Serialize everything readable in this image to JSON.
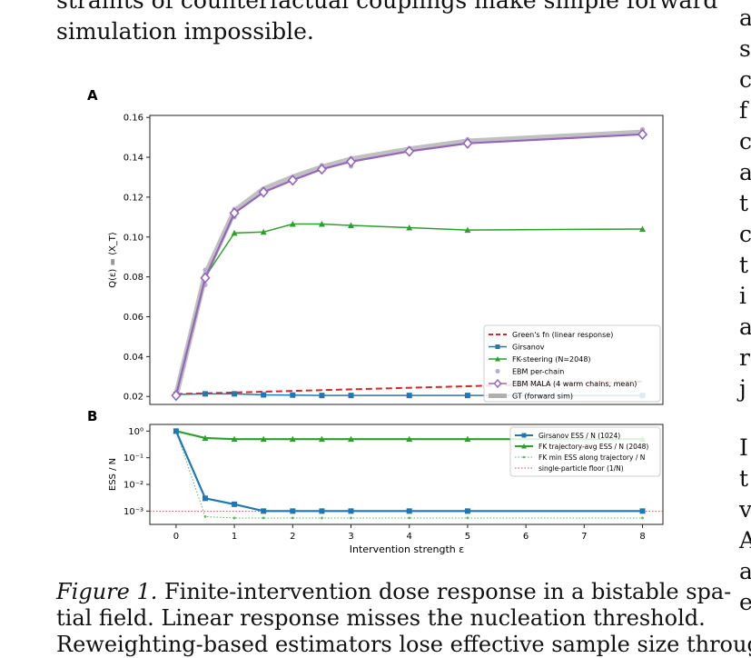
{
  "body_text": {
    "line_top_partial": "straints of counterfactual couplings make simple forward",
    "line_2": "simulation impossible."
  },
  "right_column_letters": [
    "a",
    "s",
    "c",
    "f",
    "c",
    "a",
    "t",
    "c",
    "t",
    "i",
    "a",
    "r",
    "j",
    "I",
    "t",
    "v",
    "A",
    "a",
    "e"
  ],
  "figure": {
    "panel_a_label": "A",
    "panel_b_label": "B",
    "caption_label": "Figure 1.",
    "caption_line1": "Finite-intervention dose response in a bistable spa-",
    "caption_line2": "tial field.  Linear response misses the nucleation threshold.",
    "caption_line3_partial": "Reweighting-based estimators lose effective sample size through"
  },
  "chart_data": [
    {
      "type": "line",
      "panel": "A",
      "ylabel": "Q(ε) = ⟨X_T⟩",
      "xlim": [
        -0.45,
        8.35
      ],
      "ylim": [
        0.016,
        0.161
      ],
      "yticks": [
        0.02,
        0.04,
        0.06,
        0.08,
        0.1,
        0.12,
        0.14,
        0.16
      ],
      "ytick_labels": [
        "0.02",
        "0.04",
        "0.06",
        "0.08",
        "0.10",
        "0.12",
        "0.14",
        "0.16"
      ],
      "legend_position": "bottom-right",
      "series": [
        {
          "name": "Green's fn (linear response)",
          "style": "dashed",
          "color": "#d62728",
          "x": [
            0,
            8
          ],
          "y": [
            0.0212,
            0.0275
          ]
        },
        {
          "name": "Girsanov",
          "style": "line-square",
          "color": "#1f77b4",
          "x": [
            0,
            0.5,
            1,
            1.5,
            2,
            2.5,
            3,
            4,
            5,
            8
          ],
          "y": [
            0.021,
            0.0213,
            0.0213,
            0.0208,
            0.0207,
            0.0205,
            0.0205,
            0.0205,
            0.0205,
            0.0205
          ]
        },
        {
          "name": "FK-steering (N=2048)",
          "style": "line-triangle",
          "color": "#2ca02c",
          "x": [
            0,
            0.5,
            1,
            1.5,
            2,
            2.5,
            3,
            4,
            5,
            8
          ],
          "y": [
            0.021,
            0.08,
            0.102,
            0.1025,
            0.1065,
            0.1065,
            0.1058,
            0.1047,
            0.1035,
            0.104
          ]
        },
        {
          "name": "EBM per-chain",
          "style": "dots",
          "color": "#b9a9d6",
          "x": [
            0,
            0.5,
            0.5,
            1,
            1,
            1.5,
            1.5,
            2,
            2,
            2.5,
            2.5,
            3,
            3,
            4,
            4,
            5,
            5,
            8,
            8
          ],
          "y": [
            0.0205,
            0.0835,
            0.076,
            0.114,
            0.11,
            0.124,
            0.122,
            0.13,
            0.1275,
            0.136,
            0.1335,
            0.1395,
            0.1355,
            0.1445,
            0.142,
            0.149,
            0.146,
            0.154,
            0.1515
          ]
        },
        {
          "name": "EBM MALA (4 warm chains, mean)",
          "style": "line-diamond",
          "color": "#9467bd",
          "x": [
            0,
            0.5,
            1,
            1.5,
            2,
            2.5,
            3,
            4,
            5,
            8
          ],
          "y": [
            0.0205,
            0.0795,
            0.112,
            0.1225,
            0.1285,
            0.134,
            0.1378,
            0.143,
            0.147,
            0.1515
          ]
        },
        {
          "name": "GT (forward sim)",
          "style": "thick",
          "color": "#b0b0b0",
          "x": [
            0,
            0.5,
            1,
            1.5,
            2,
            2.5,
            3,
            4,
            5,
            8
          ],
          "y": [
            0.0205,
            0.081,
            0.113,
            0.124,
            0.13,
            0.135,
            0.139,
            0.144,
            0.148,
            0.1525
          ]
        }
      ]
    },
    {
      "type": "line",
      "panel": "B",
      "xlabel": "Intervention strength ε",
      "ylabel": "ESS / N",
      "yscale": "log",
      "xlim": [
        -0.45,
        8.35
      ],
      "ylim_log10": [
        -3.5,
        0.25
      ],
      "xticks": [
        0,
        1,
        2,
        3,
        4,
        5,
        6,
        7,
        8
      ],
      "ytick_labels": [
        "10⁰",
        "10⁻¹",
        "10⁻²",
        "10⁻³"
      ],
      "legend_position": "top-right",
      "series": [
        {
          "name": "Girsanov ESS / N (1024)",
          "style": "line-square",
          "color": "#1f77b4",
          "x": [
            0,
            0.5,
            1,
            1.5,
            2,
            2.5,
            3,
            4,
            5,
            8
          ],
          "y": [
            1.0,
            0.003,
            0.0018,
            0.001,
            0.001,
            0.001,
            0.001,
            0.001,
            0.001,
            0.001
          ]
        },
        {
          "name": "FK trajectory-avg ESS / N (2048)",
          "style": "line-triangle",
          "color": "#2ca02c",
          "x": [
            0,
            0.5,
            1,
            1.5,
            2,
            2.5,
            3,
            4,
            5,
            8
          ],
          "y": [
            1.0,
            0.55,
            0.5,
            0.5,
            0.5,
            0.5,
            0.5,
            0.5,
            0.5,
            0.5
          ]
        },
        {
          "name": "FK min ESS along trajectory / N",
          "style": "dotted",
          "color": "#5cb85c",
          "x": [
            0,
            0.5,
            1,
            1.5,
            2,
            2.5,
            3,
            4,
            5,
            8
          ],
          "y": [
            1.0,
            0.00062,
            0.00055,
            0.00055,
            0.00055,
            0.00055,
            0.00055,
            0.00055,
            0.00055,
            0.00055
          ]
        },
        {
          "name": "single-particle floor (1/N)",
          "style": "hline-dotted",
          "color": "#c0504d",
          "x": [
            -0.45,
            8.35
          ],
          "y": [
            0.00098,
            0.00098
          ]
        }
      ]
    }
  ]
}
